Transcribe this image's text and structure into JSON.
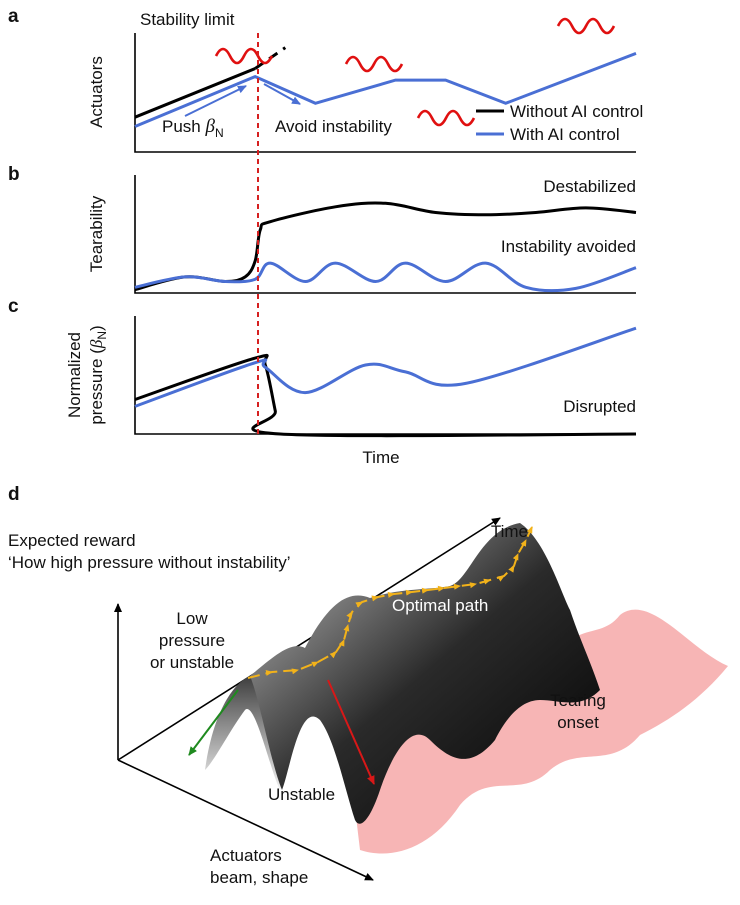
{
  "colors": {
    "without_ai": "#000000",
    "with_ai": "#4a6fd4",
    "stability_limit": "#d62020",
    "oscillation": "#e01010",
    "tearing_region": "#f5a3a3",
    "optimal_path": "#f2b21a",
    "unstable_arrow": "#d81818",
    "low_pressure_arrow": "#1f8a1f"
  },
  "panels": {
    "a": {
      "label": "a",
      "ylabel": "Actuators",
      "stability_limit": "Stability limit",
      "push_text": "Push ",
      "push_beta": "β",
      "push_sub": "N",
      "avoid_text": "Avoid instability"
    },
    "b": {
      "label": "b",
      "ylabel": "Tearability",
      "destabilized": "Destabilized",
      "instability_avoided": "Instability avoided"
    },
    "c": {
      "label": "c",
      "ylabel_line1": "Normalized",
      "ylabel_line2": "pressure (",
      "ylabel_beta": "β",
      "ylabel_sub": "N",
      "ylabel_close": ")",
      "disrupted": "Disrupted",
      "xlabel": "Time"
    },
    "d": {
      "label": "d",
      "title_line1": "Expected reward",
      "title_line2": "‘How high pressure without instability’",
      "time_axis": "Time",
      "actuators_line1": "Actuators",
      "actuators_line2": "beam, shape",
      "low_line1": "Low",
      "low_line2": "pressure",
      "low_line3": "or unstable",
      "optimal_path": "Optimal path",
      "tearing_line1": "Tearing",
      "tearing_line2": "onset",
      "unstable": "Unstable"
    }
  },
  "legend": {
    "without_ai": "Without AI control",
    "with_ai": "With AI control"
  },
  "chart_data": [
    {
      "type": "line",
      "panel": "a",
      "xlabel": "",
      "ylabel": "Actuators",
      "xlim": [
        0,
        100
      ],
      "ylim": [
        0,
        100
      ],
      "series": [
        {
          "name": "Without AI control",
          "x": [
            0,
            24,
            30
          ],
          "y": [
            30,
            72,
            90
          ]
        },
        {
          "name": "With AI control",
          "x": [
            0,
            24,
            36,
            52,
            62,
            74,
            100
          ],
          "y": [
            22,
            65,
            42,
            62,
            62,
            42,
            85
          ]
        }
      ]
    },
    {
      "type": "line",
      "panel": "b",
      "xlabel": "",
      "ylabel": "Tearability",
      "xlim": [
        0,
        100
      ],
      "ylim": [
        0,
        100
      ],
      "series": [
        {
          "name": "Without AI control",
          "x": [
            0,
            10,
            18,
            22,
            24,
            25,
            27,
            40,
            50,
            60,
            70,
            80,
            90,
            100
          ],
          "y": [
            3,
            14,
            10,
            14,
            28,
            55,
            62,
            75,
            78,
            70,
            68,
            70,
            74,
            70
          ]
        },
        {
          "name": "With AI control",
          "x": [
            0,
            10,
            18,
            24,
            27,
            34,
            40,
            48,
            54,
            62,
            70,
            78,
            88,
            100
          ],
          "y": [
            5,
            14,
            10,
            12,
            26,
            10,
            26,
            10,
            26,
            10,
            26,
            5,
            4,
            22
          ]
        }
      ]
    },
    {
      "type": "line",
      "panel": "c",
      "xlabel": "Time",
      "ylabel": "Normalized pressure (βN)",
      "xlim": [
        0,
        100
      ],
      "ylim": [
        0,
        100
      ],
      "series": [
        {
          "name": "Without AI control",
          "x": [
            0,
            24,
            26,
            28,
            29,
            100
          ],
          "y": [
            30,
            66,
            60,
            20,
            0,
            0
          ]
        },
        {
          "name": "With AI control",
          "x": [
            0,
            24,
            26,
            34,
            46,
            54,
            66,
            100
          ],
          "y": [
            24,
            62,
            58,
            36,
            60,
            54,
            44,
            92
          ]
        }
      ]
    }
  ]
}
